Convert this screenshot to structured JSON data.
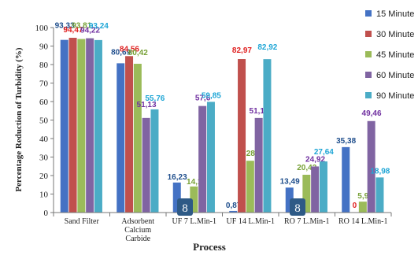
{
  "chart_data": {
    "type": "bar",
    "ylabel": "Percentage Reduction of Turbidity (%)",
    "xlabel": "Process",
    "ylim": [
      0,
      100
    ],
    "yticks": [
      0,
      10,
      20,
      30,
      40,
      50,
      60,
      70,
      80,
      90,
      100
    ],
    "categories": [
      "Sand Filter",
      "Adsorbent Calcium Carbide",
      "UF 7 L.Min-1",
      "UF 14 L.Min-1",
      "RO 7 L.Min-1",
      "RO 14 L.Min-1"
    ],
    "category_lines": [
      [
        "Sand Filter"
      ],
      [
        "Adsorbent",
        "Calcium",
        "Carbide"
      ],
      [
        "UF 7 L.Min-1"
      ],
      [
        "UF 14 L.Min-1"
      ],
      [
        "RO 7 L.Min-1"
      ],
      [
        "RO 14 L.Min-1"
      ]
    ],
    "series": [
      {
        "name": "15 Minute",
        "color": "#4472C4",
        "label_color": "#1F4E8C",
        "values": [
          93.33,
          80.69,
          16.23,
          0.87,
          13.49,
          35.38
        ],
        "labels": [
          "93,33",
          "80,69",
          "16,23",
          "0,87",
          "13,49",
          "35,38"
        ]
      },
      {
        "name": "30 Minute",
        "color": "#C0504D",
        "label_color": "#E02020",
        "values": [
          94.47,
          84.56,
          0,
          82.97,
          1.83,
          0
        ],
        "labels": [
          "94,47",
          "84,56",
          "",
          "82,97",
          "1,83",
          "0"
        ]
      },
      {
        "name": "45 Minute",
        "color": "#9BBB59",
        "label_color": "#76A035",
        "values": [
          93.81,
          80.42,
          14.1,
          28,
          20.43,
          5.9
        ],
        "labels": [
          "93,81",
          "80,42",
          "14,1",
          "28",
          "20,43",
          "5,9"
        ]
      },
      {
        "name": "60 Minute",
        "color": "#8064A2",
        "label_color": "#7030A0",
        "values": [
          94.22,
          51.13,
          57.6,
          51.12,
          24.92,
          49.46
        ],
        "labels": [
          "94,22",
          "51,13",
          "57,6",
          "51,12",
          "24,92",
          "49,46"
        ]
      },
      {
        "name": "90 Minute",
        "color": "#4BACC6",
        "label_color": "#1FA6D6",
        "values": [
          93.24,
          55.76,
          59.85,
          82.92,
          27.64,
          18.98
        ],
        "labels": [
          "93,24",
          "55,76",
          "59,85",
          "82,92",
          "27,64",
          "18,98"
        ]
      }
    ],
    "legend_position": "right",
    "grid": false,
    "badges": [
      "8",
      "8"
    ]
  }
}
